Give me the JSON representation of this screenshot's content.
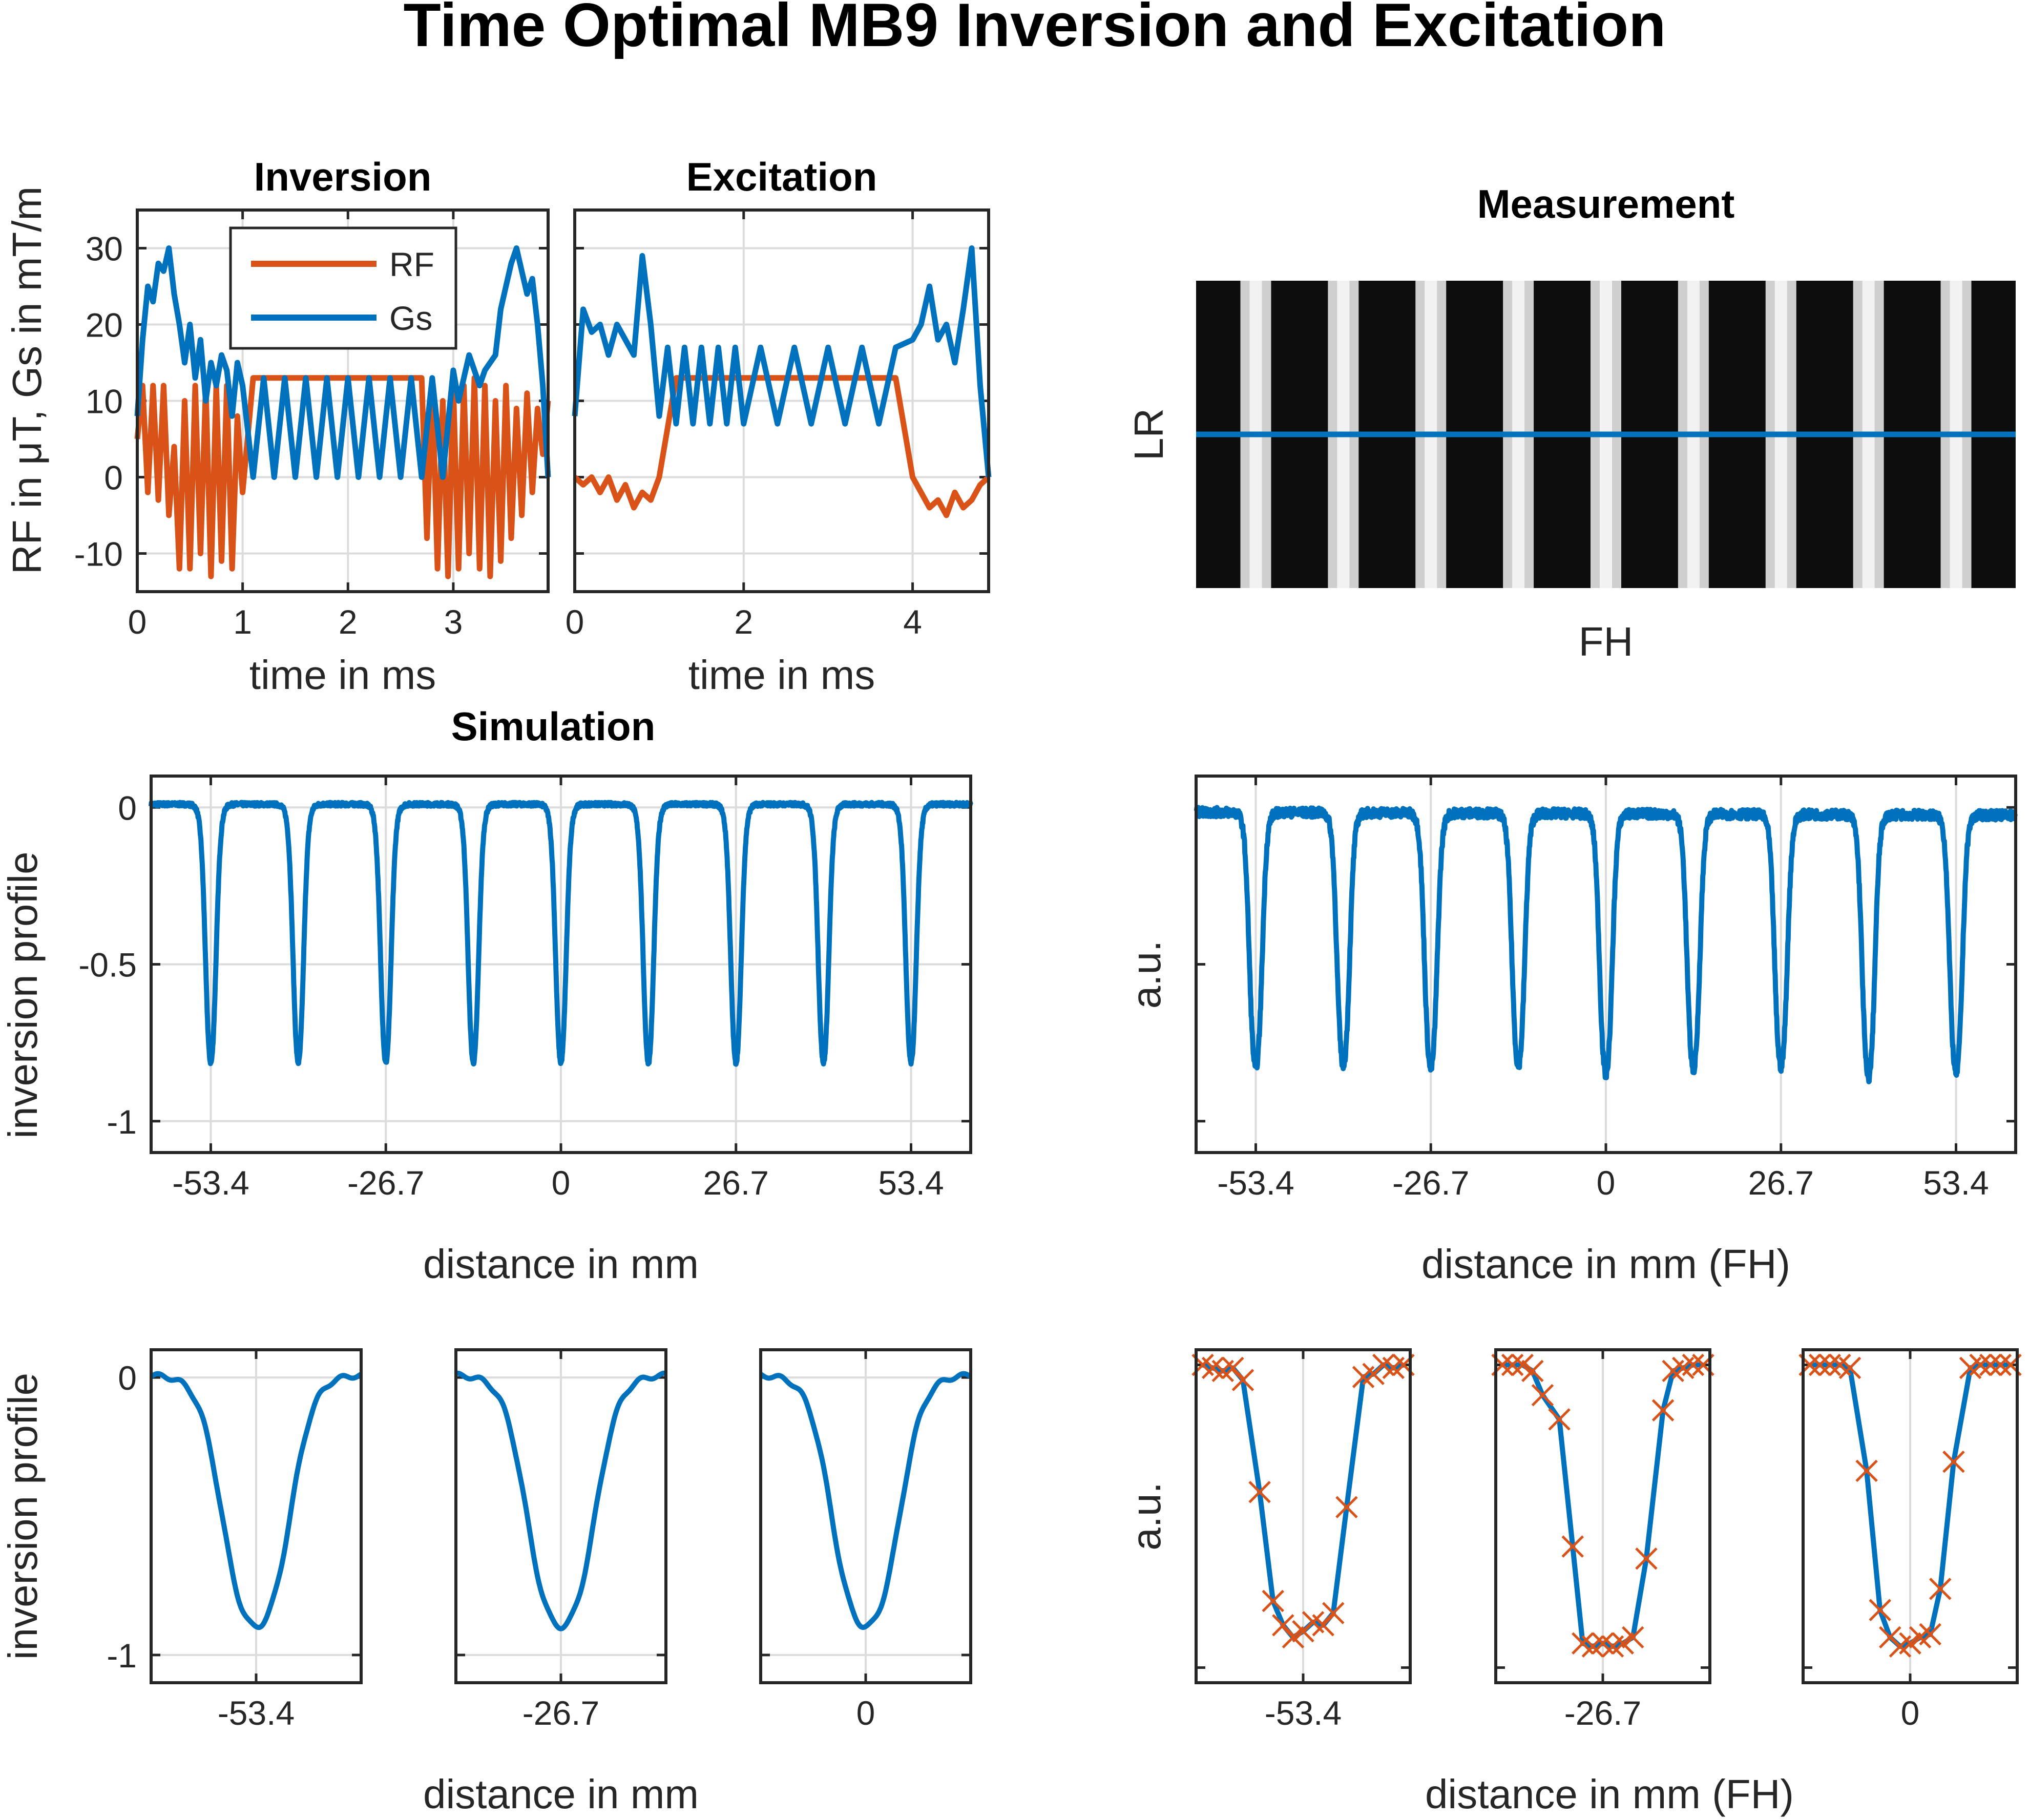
{
  "figure": {
    "title": "Time Optimal MB9 Inversion and Excitation",
    "simulation_label": "Simulation",
    "measurement_label": "Measurement"
  },
  "colors": {
    "rf": "#d95319",
    "gs": "#0072bd",
    "axis": "#262626",
    "grid": "#dcdcdc"
  },
  "chart_data": [
    {
      "id": "inversion-pulse",
      "type": "line",
      "title": "Inversion",
      "xlabel": "time in ms",
      "ylabel": "RF in μT, Gs in mT/m",
      "xlim": [
        0,
        3.9
      ],
      "ylim": [
        -15,
        35
      ],
      "xticks": [
        0,
        1,
        2,
        3
      ],
      "xticklabels": [
        "0",
        "1",
        "2",
        "3"
      ],
      "yticks": [
        -10,
        0,
        10,
        20,
        30
      ],
      "yticklabels": [
        "-10",
        "0",
        "10",
        "20",
        "30"
      ],
      "legend": {
        "location": "top-center",
        "entries": [
          "RF",
          "Gs"
        ]
      },
      "series": [
        {
          "name": "RF",
          "color": "#d95319",
          "description_values": {
            "x": [
              0,
              0.05,
              0.1,
              0.15,
              0.2,
              0.25,
              0.3,
              0.35,
              0.4,
              0.45,
              0.5,
              0.55,
              0.6,
              0.65,
              0.7,
              0.75,
              0.8,
              0.85,
              0.9,
              0.95,
              1.0,
              1.1,
              1.2,
              1.3,
              1.4,
              1.5,
              1.6,
              1.7,
              1.8,
              1.9,
              2.0,
              2.1,
              2.2,
              2.3,
              2.4,
              2.5,
              2.6,
              2.7,
              2.75,
              2.8,
              2.85,
              2.9,
              2.95,
              3.0,
              3.05,
              3.1,
              3.15,
              3.2,
              3.25,
              3.3,
              3.35,
              3.4,
              3.45,
              3.5,
              3.55,
              3.6,
              3.65,
              3.7,
              3.75,
              3.8,
              3.85,
              3.9
            ],
            "y": [
              5,
              12,
              -2,
              12,
              -3,
              12,
              -5,
              4,
              -12,
              10,
              -12,
              12,
              -10,
              12,
              -13,
              12,
              -11,
              12,
              -12,
              8,
              -2,
              13,
              13,
              13,
              13,
              13,
              13,
              13,
              13,
              13,
              13,
              13,
              13,
              13,
              13,
              13,
              13,
              13,
              -8,
              12,
              -12,
              10,
              -13,
              12,
              -12,
              12,
              -10,
              13,
              -12,
              12,
              -13,
              10,
              -11,
              12,
              -8,
              9,
              -5,
              11,
              -2,
              9,
              3,
              10
            ]
          }
        },
        {
          "name": "Gs",
          "color": "#0072bd",
          "description_values": {
            "x": [
              0,
              0.05,
              0.1,
              0.15,
              0.2,
              0.25,
              0.3,
              0.35,
              0.4,
              0.45,
              0.5,
              0.55,
              0.6,
              0.65,
              0.7,
              0.75,
              0.8,
              0.85,
              0.9,
              0.95,
              1.0,
              1.1,
              1.2,
              1.3,
              1.4,
              1.5,
              1.6,
              1.7,
              1.8,
              1.9,
              2.0,
              2.1,
              2.2,
              2.3,
              2.4,
              2.5,
              2.6,
              2.7,
              2.8,
              2.9,
              3.0,
              3.05,
              3.1,
              3.15,
              3.2,
              3.25,
              3.3,
              3.35,
              3.4,
              3.45,
              3.5,
              3.55,
              3.6,
              3.65,
              3.7,
              3.75,
              3.8,
              3.85,
              3.9
            ],
            "y": [
              8,
              18,
              25,
              23,
              28,
              27,
              30,
              24,
              20,
              15,
              20,
              13,
              18,
              10,
              15,
              12,
              16,
              14,
              8,
              15,
              12,
              0,
              13,
              0,
              13,
              0,
              13,
              0,
              13,
              0,
              13,
              0,
              13,
              0,
              13,
              0,
              13,
              0,
              13,
              0,
              14,
              10,
              13,
              16,
              14,
              12,
              14,
              15,
              16,
              22,
              25,
              28,
              30,
              27,
              24,
              26,
              20,
              12,
              0
            ]
          }
        }
      ]
    },
    {
      "id": "excitation-pulse",
      "type": "line",
      "title": "Excitation",
      "xlabel": "time in ms",
      "xlim": [
        0,
        4.9
      ],
      "ylim": [
        -15,
        35
      ],
      "xticks": [
        0,
        2,
        4
      ],
      "xticklabels": [
        "0",
        "2",
        "4"
      ],
      "series": [
        {
          "name": "RF",
          "color": "#d95319",
          "description_values": {
            "x": [
              0,
              0.1,
              0.2,
              0.3,
              0.4,
              0.5,
              0.6,
              0.7,
              0.8,
              0.9,
              1.0,
              1.2,
              1.4,
              1.6,
              1.8,
              2.0,
              2.2,
              2.4,
              2.6,
              2.8,
              3.0,
              3.2,
              3.4,
              3.6,
              3.8,
              4.0,
              4.1,
              4.2,
              4.3,
              4.4,
              4.5,
              4.6,
              4.7,
              4.8,
              4.9
            ],
            "y": [
              0,
              -1,
              0,
              -2,
              0,
              -3,
              -1,
              -4,
              -2,
              -3,
              0,
              13,
              13,
              13,
              13,
              13,
              13,
              13,
              13,
              13,
              13,
              13,
              13,
              13,
              13,
              0,
              -2,
              -4,
              -3,
              -5,
              -2,
              -4,
              -3,
              -1,
              0
            ]
          }
        },
        {
          "name": "Gs",
          "color": "#0072bd",
          "description_values": {
            "x": [
              0,
              0.1,
              0.2,
              0.3,
              0.4,
              0.5,
              0.6,
              0.7,
              0.8,
              0.9,
              1.0,
              1.1,
              1.2,
              1.3,
              1.4,
              1.5,
              1.6,
              1.7,
              1.8,
              1.9,
              2.0,
              2.2,
              2.4,
              2.6,
              2.8,
              3.0,
              3.2,
              3.4,
              3.6,
              3.8,
              4.0,
              4.1,
              4.2,
              4.3,
              4.4,
              4.5,
              4.6,
              4.7,
              4.8,
              4.9
            ],
            "y": [
              8,
              22,
              19,
              20,
              16,
              20,
              18,
              16,
              29,
              20,
              8,
              17,
              7,
              17,
              7,
              17,
              7,
              17,
              7,
              17,
              7,
              17,
              7,
              17,
              7,
              17,
              7,
              17,
              7,
              17,
              18,
              20,
              25,
              18,
              20,
              15,
              22,
              30,
              12,
              0
            ]
          }
        }
      ]
    },
    {
      "id": "measurement-image",
      "type": "heatmap",
      "title": "Measurement",
      "xlabel": "FH",
      "ylabel": "LR",
      "bright_stripes": 9,
      "profile_line_fraction": 0.5
    },
    {
      "id": "simulation-profile",
      "type": "line",
      "xlabel": "distance in mm",
      "ylabel": "inversion profile",
      "xlim": [
        -62.5,
        62.5
      ],
      "ylim": [
        -1.1,
        0.1
      ],
      "xticks": [
        -53.4,
        -26.7,
        0,
        26.7,
        53.4
      ],
      "xticklabels": [
        "-53.4",
        "-26.7",
        "0",
        "26.7",
        "53.4"
      ],
      "yticks": [
        -1,
        -0.5,
        0
      ],
      "yticklabels": [
        "-1",
        "-0.5",
        "0"
      ],
      "series": [
        {
          "name": "",
          "color": "#0072bd",
          "slice_centers": [
            -53.4,
            -40.05,
            -26.7,
            -13.35,
            0,
            13.35,
            26.7,
            40.05,
            53.4
          ],
          "slice_depth": -0.99,
          "slice_width_mm": 1.6
        }
      ]
    },
    {
      "id": "measured-profile",
      "type": "line",
      "xlabel": "distance in mm (FH)",
      "ylabel": "a.u.",
      "xlim": [
        -62.5,
        62.5
      ],
      "ylim": [
        -1.1,
        0.1
      ],
      "xticks": [
        -53.4,
        -26.7,
        0,
        26.7,
        53.4
      ],
      "xticklabels": [
        "-53.4",
        "-26.7",
        "0",
        "26.7",
        "53.4"
      ],
      "series": [
        {
          "name": "",
          "color": "#0072bd",
          "slice_centers": [
            -53.4,
            -40.05,
            -26.7,
            -13.35,
            0,
            13.35,
            26.7,
            40.05,
            53.4
          ],
          "slice_depth": [
            -0.93,
            -0.92,
            -0.93,
            -0.92,
            -0.95,
            -0.93,
            -0.92,
            -0.96,
            -0.94
          ],
          "baseline": -0.02
        }
      ]
    },
    {
      "id": "simulation-zoom",
      "type": "line",
      "xlabel": "distance in mm",
      "ylabel": "inversion profile",
      "panels": [
        {
          "center": -53.4,
          "label": "-53.4"
        },
        {
          "center": -26.7,
          "label": "-26.7"
        },
        {
          "center": 0,
          "label": "0"
        }
      ],
      "xhalfwidth": 3.2,
      "ylim": [
        -1.1,
        0.1
      ],
      "yticks": [
        -1,
        0
      ],
      "yticklabels": [
        "-1",
        "0"
      ],
      "series": [
        {
          "name": "",
          "color": "#0072bd",
          "slice_depth": -0.99
        }
      ]
    },
    {
      "id": "measured-zoom",
      "type": "line",
      "xlabel": "distance in mm (FH)",
      "ylabel": "a.u.",
      "panels": [
        {
          "center": -53.4,
          "label": "-53.4"
        },
        {
          "center": -26.7,
          "label": "-26.7"
        },
        {
          "center": 0,
          "label": "0"
        }
      ],
      "xhalfwidth": 3.2,
      "ylim": [
        -1.05,
        0.05
      ],
      "series": [
        {
          "name": "",
          "color": "#0072bd"
        },
        {
          "name": "",
          "color": "#d95319",
          "marker": "x",
          "points": [
            {
              "dx": [
                -3.0,
                -2.7,
                -2.4,
                -2.1,
                -1.8,
                -1.3,
                -0.9,
                -0.6,
                -0.3,
                0,
                0.3,
                0.6,
                0.9,
                1.3,
                1.8,
                2.1,
                2.4,
                2.7,
                3.0
              ],
              "y": [
                0,
                -0.01,
                -0.02,
                -0.01,
                -0.05,
                -0.42,
                -0.78,
                -0.86,
                -0.9,
                -0.88,
                -0.85,
                -0.86,
                -0.82,
                -0.47,
                -0.04,
                -0.03,
                0,
                -0.01,
                0
              ]
            },
            {
              "dx": [
                -3.0,
                -2.7,
                -2.4,
                -2.1,
                -1.8,
                -1.3,
                -0.9,
                -0.6,
                -0.3,
                0,
                0.3,
                0.6,
                0.9,
                1.3,
                1.8,
                2.1,
                2.4,
                2.7,
                3.0
              ],
              "y": [
                0,
                0,
                0,
                -0.02,
                -0.1,
                -0.18,
                -0.6,
                -0.92,
                -0.93,
                -0.92,
                -0.93,
                -0.92,
                -0.9,
                -0.64,
                -0.15,
                -0.02,
                -0.01,
                0,
                0
              ]
            },
            {
              "dx": [
                -3.0,
                -2.7,
                -2.4,
                -2.1,
                -1.8,
                -1.3,
                -0.9,
                -0.6,
                -0.3,
                0,
                0.3,
                0.6,
                0.9,
                1.3,
                1.8,
                2.1,
                2.4,
                2.7,
                3.0
              ],
              "y": [
                0,
                0,
                0,
                0,
                -0.01,
                -0.35,
                -0.81,
                -0.9,
                -0.93,
                -0.92,
                -0.9,
                -0.89,
                -0.74,
                -0.32,
                -0.01,
                0,
                0,
                0,
                0
              ]
            }
          ]
        }
      ]
    }
  ]
}
